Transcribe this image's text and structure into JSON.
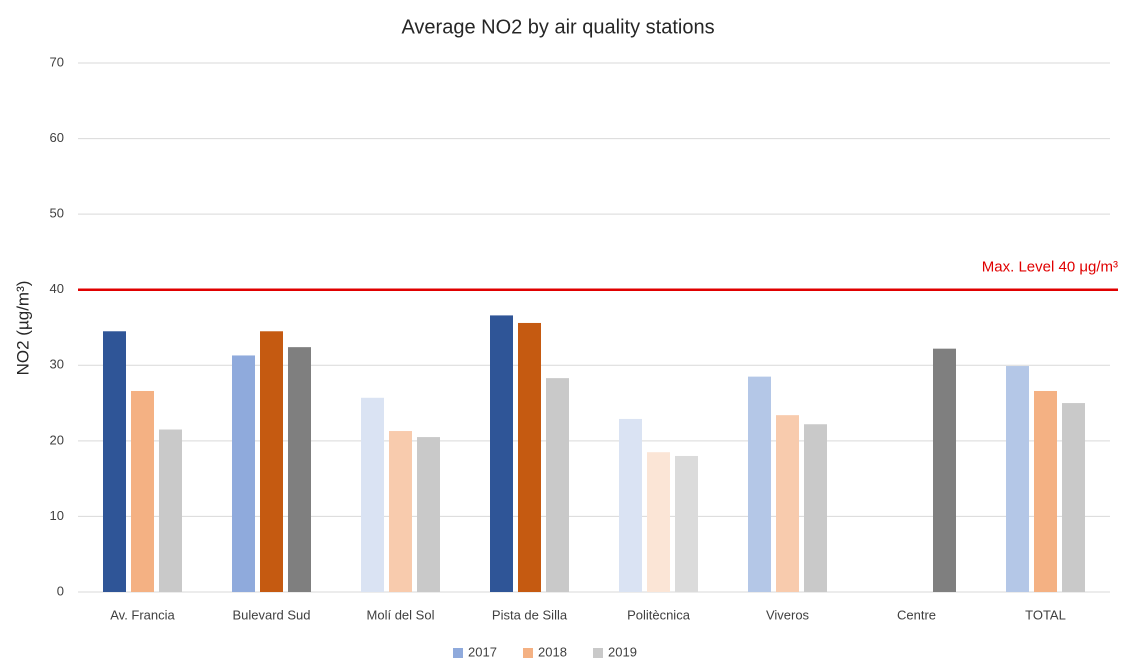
{
  "chart_data": {
    "type": "bar",
    "title": "Average NO2 by air quality stations",
    "y_label": "NO2 (µg/m³)",
    "categories": [
      "Av. Francia",
      "Bulevard Sud",
      "Molí del Sol",
      "Pista de Silla",
      "Politècnica",
      "Viveros",
      "Centre",
      "TOTAL"
    ],
    "series": [
      {
        "name": "2017",
        "color": "#8faadc",
        "values": [
          34.5,
          31.3,
          25.7,
          36.6,
          22.9,
          28.5,
          null,
          29.9
        ],
        "colors": [
          "#2f5597",
          "#8faadc",
          "#dae3f3",
          "#2f5597",
          "#dae3f3",
          "#b4c7e7",
          null,
          "#b4c7e7"
        ]
      },
      {
        "name": "2018",
        "color": "#f4b183",
        "values": [
          26.6,
          34.5,
          21.3,
          35.6,
          18.5,
          23.4,
          null,
          26.6
        ],
        "colors": [
          "#f4b183",
          "#c55a11",
          "#f8cbad",
          "#c55a11",
          "#fbe5d6",
          "#f8cbad",
          null,
          "#f4b183"
        ]
      },
      {
        "name": "2019",
        "color": "#c9c9c9",
        "values": [
          21.5,
          32.4,
          20.5,
          28.3,
          18.0,
          22.2,
          32.2,
          25.0
        ],
        "colors": [
          "#c9c9c9",
          "#7f7f7f",
          "#c9c9c9",
          "#c9c9c9",
          "#dbdbdb",
          "#c9c9c9",
          "#7f7f7f",
          "#c9c9c9"
        ]
      }
    ],
    "reference_line": {
      "value": 40,
      "label": "Max. Level 40 μg/m³",
      "color": "#e00000"
    },
    "ylim": [
      0,
      70
    ],
    "yticks": [
      0,
      10,
      20,
      30,
      40,
      50,
      60,
      70
    ],
    "grid": true,
    "legend": "bottom"
  }
}
